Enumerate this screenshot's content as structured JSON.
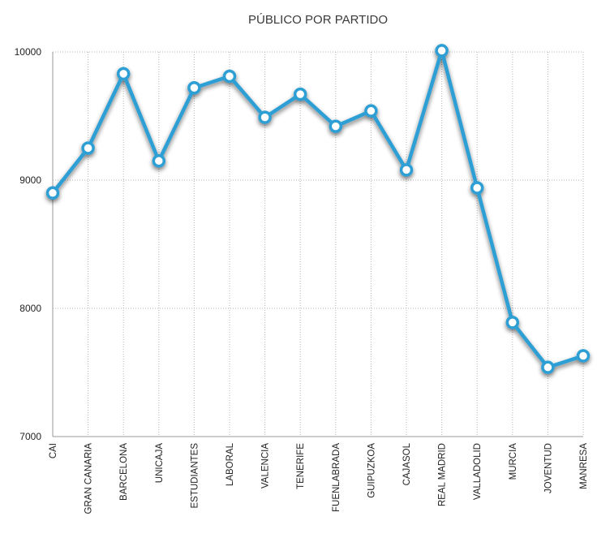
{
  "chart_data": {
    "type": "line",
    "title": "PÚBLICO POR PARTIDO",
    "xlabel": "",
    "ylabel": "",
    "categories": [
      "CAI",
      "GRAN CANARIA",
      "BARCELONA",
      "UNICAJA",
      "ESTUDIANTES",
      "LABORAL",
      "VALENCIA",
      "TENERIFE",
      "FUENLABRADA",
      "GUIPUZKOA",
      "CAJASOL",
      "REAL MADRID",
      "VALLADOLID",
      "MURCIA",
      "JOVENTUD",
      "MANRESA"
    ],
    "series": [
      {
        "values": [
          8900,
          9250,
          9830,
          9150,
          9720,
          9810,
          9490,
          9670,
          9420,
          9540,
          9080,
          10010,
          8940,
          7890,
          7540,
          7630
        ],
        "color": "#2d9fd4"
      }
    ],
    "ylim": [
      7000,
      10000
    ],
    "yticks": [
      7000,
      8000,
      9000,
      10000
    ],
    "grid": true,
    "grid_style": "dotted",
    "legend": "none"
  }
}
